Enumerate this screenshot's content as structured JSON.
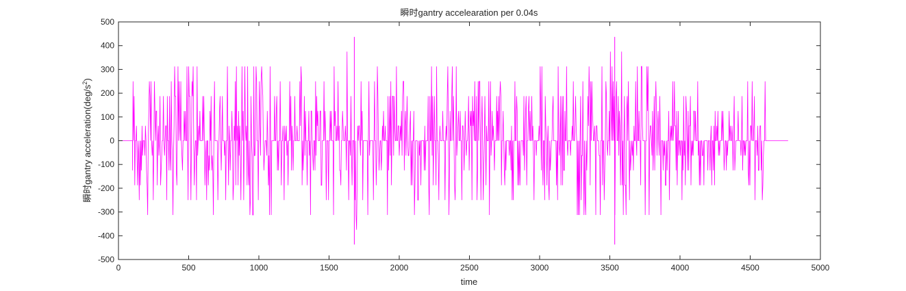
{
  "chart_data": {
    "type": "line",
    "title": "瞬时gantry accelearation per 0.04s",
    "xlabel": "time",
    "ylabel_main": "瞬时gantry acceleration(deg/s",
    "ylabel_sup": "2",
    "ylabel_tail": ")",
    "xlim": [
      0,
      5000
    ],
    "ylim": [
      -500,
      500
    ],
    "xticks": [
      0,
      500,
      1000,
      1500,
      2000,
      2500,
      3000,
      3500,
      4000,
      4500,
      5000
    ],
    "yticks": [
      -500,
      -400,
      -300,
      -200,
      -100,
      0,
      100,
      200,
      300,
      400,
      500
    ],
    "grid": false,
    "line_color": "#ff00ff",
    "series": [
      {
        "quantization_step": 62.5,
        "active_range": [
          100,
          4610
        ],
        "x_end": 4770,
        "peaks": [
          {
            "x": 1680,
            "y": 437
          },
          {
            "x": 1680,
            "y": -437
          },
          {
            "x": 3535,
            "y": 437
          },
          {
            "x": 3535,
            "y": -437
          }
        ],
        "segments": [
          {
            "x0": 0,
            "x1": 100,
            "amp": 0
          },
          {
            "x0": 100,
            "x1": 200,
            "amp": 250
          },
          {
            "x0": 200,
            "x1": 760,
            "amp": 312.5
          },
          {
            "x0": 760,
            "x1": 900,
            "amp": 312.5
          },
          {
            "x0": 900,
            "x1": 1160,
            "amp": 375
          },
          {
            "x0": 1160,
            "x1": 1600,
            "amp": 312.5
          },
          {
            "x0": 1600,
            "x1": 1720,
            "amp": 375
          },
          {
            "x0": 1720,
            "x1": 2150,
            "amp": 312.5
          },
          {
            "x0": 2150,
            "x1": 2700,
            "amp": 312.5
          },
          {
            "x0": 2700,
            "x1": 3400,
            "amp": 312.5
          },
          {
            "x0": 3400,
            "x1": 3700,
            "amp": 375
          },
          {
            "x0": 3700,
            "x1": 3990,
            "amp": 312.5
          },
          {
            "x0": 3990,
            "x1": 4610,
            "amp": 250
          },
          {
            "x0": 4610,
            "x1": 4770,
            "amp": 0
          }
        ]
      }
    ]
  }
}
